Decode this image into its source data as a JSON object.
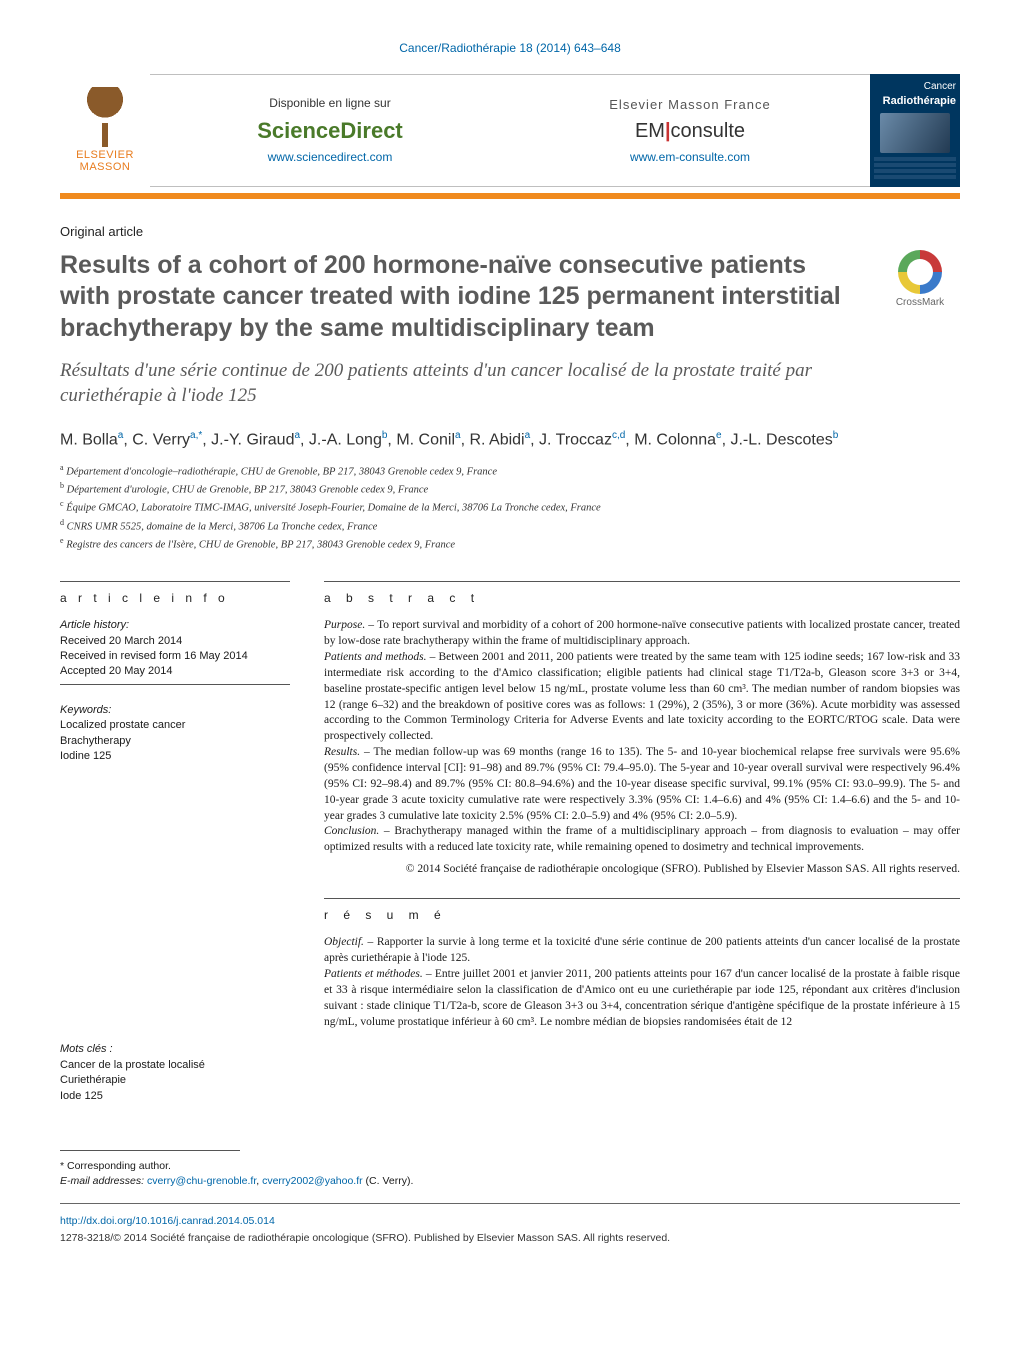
{
  "running_head": "Cancer/Radiothérapie 18 (2014) 643–648",
  "publisher": {
    "name_line1": "ELSEVIER",
    "name_line2": "MASSON"
  },
  "header": {
    "left": {
      "avail": "Disponible en ligne sur",
      "brand": "ScienceDirect",
      "url": "www.sciencedirect.com"
    },
    "right": {
      "avail": "Elsevier Masson France",
      "brand_a": "EM",
      "brand_b": "consulte",
      "url": "www.em-consulte.com"
    }
  },
  "cover": {
    "line1": "Cancer",
    "line2": "Radiothérapie"
  },
  "article_type": "Original article",
  "title_en": "Results of a cohort of 200 hormone-naïve consecutive patients with prostate cancer treated with iodine 125 permanent interstitial brachytherapy by the same multidisciplinary team",
  "title_fr": "Résultats d'une série continue de 200 patients atteints d'un cancer localisé de la prostate traité par curiethérapie à l'iode 125",
  "crossmark": "CrossMark",
  "authors_html": "M. Bolla<sup>a</sup>, C. Verry<sup>a,*</sup>, J.-Y. Giraud<sup>a</sup>, J.-A. Long<sup>b</sup>, M. Conil<sup>a</sup>, R. Abidi<sup>a</sup>, J. Troccaz<sup>c,d</sup>, M. Colonna<sup>e</sup>, J.-L. Descotes<sup>b</sup>",
  "affiliations": [
    "Département d'oncologie–radiothérapie, CHU de Grenoble, BP 217, 38043 Grenoble cedex 9, France",
    "Département d'urologie, CHU de Grenoble, BP 217, 38043 Grenoble cedex 9, France",
    "Équipe GMCAO, Laboratoire TIMC-IMAG, université Joseph-Fourier, Domaine de la Merci, 38706 La Tronche cedex, France",
    "CNRS UMR 5525, domaine de la Merci, 38706 La Tronche cedex, France",
    "Registre des cancers de l'Isère, CHU de Grenoble, BP 217, 38043 Grenoble cedex 9, France"
  ],
  "aff_markers": [
    "a",
    "b",
    "c",
    "d",
    "e"
  ],
  "article_info": {
    "head": "a r t i c l e   i n f o",
    "history_label": "Article history:",
    "received": "Received 20 March 2014",
    "revised": "Received in revised form 16 May 2014",
    "accepted": "Accepted 20 May 2014",
    "keywords_label": "Keywords:",
    "keywords": [
      "Localized prostate cancer",
      "Brachytherapy",
      "Iodine 125"
    ],
    "motscles_label": "Mots clés :",
    "motscles": [
      "Cancer de la prostate localisé",
      "Curiethérapie",
      "Iode 125"
    ]
  },
  "abstract": {
    "head": "a b s t r a c t",
    "purpose_label": "Purpose. – ",
    "purpose": "To report survival and morbidity of a cohort of 200 hormone-naïve consecutive patients with localized prostate cancer, treated by low-dose rate brachytherapy within the frame of multidisciplinary approach.",
    "methods_label": "Patients and methods. – ",
    "methods": "Between 2001 and 2011, 200 patients were treated by the same team with 125 iodine seeds; 167 low-risk and 33 intermediate risk according to the d'Amico classification; eligible patients had clinical stage T1/T2a-b, Gleason score 3+3 or 3+4, baseline prostate-specific antigen level below 15 ng/mL, prostate volume less than 60 cm³. The median number of random biopsies was 12 (range 6–32) and the breakdown of positive cores was as follows: 1 (29%), 2 (35%), 3 or more (36%). Acute morbidity was assessed according to the Common Terminology Criteria for Adverse Events and late toxicity according to the EORTC/RTOG scale. Data were prospectively collected.",
    "results_label": "Results. – ",
    "results": "The median follow-up was 69 months (range 16 to 135). The 5- and 10-year biochemical relapse free survivals were 95.6% (95% confidence interval [CI]: 91–98) and 89.7% (95% CI: 79.4–95.0). The 5-year and 10-year overall survival were respectively 96.4% (95% CI: 92–98.4) and 89.7% (95% CI: 80.8–94.6%) and the 10-year disease specific survival, 99.1% (95% CI: 93.0–99.9). The 5- and 10-year grade 3 acute toxicity cumulative rate were respectively 3.3% (95% CI: 1.4–6.6) and 4% (95% CI: 1.4–6.6) and the 5- and 10-year grades 3 cumulative late toxicity 2.5% (95% CI: 2.0–5.9) and 4% (95% CI: 2.0–5.9).",
    "conclusion_label": "Conclusion. – ",
    "conclusion": "Brachytherapy managed within the frame of a multidisciplinary approach – from diagnosis to evaluation – may offer optimized results with a reduced late toxicity rate, while remaining opened to dosimetry and technical improvements.",
    "copyright": "© 2014 Société française de radiothérapie oncologique (SFRO). Published by Elsevier Masson SAS. All rights reserved."
  },
  "resume": {
    "head": "r é s u m é",
    "objectif_label": "Objectif. – ",
    "objectif": "Rapporter la survie à long terme et la toxicité d'une série continue de 200 patients atteints d'un cancer localisé de la prostate après curiethérapie à l'iode 125.",
    "methods_label": "Patients et méthodes. – ",
    "methods": "Entre juillet 2001 et janvier 2011, 200 patients atteints pour 167 d'un cancer localisé de la prostate à faible risque et 33 à risque intermédiaire selon la classification de d'Amico ont eu une curiethérapie par iode 125, répondant aux critères d'inclusion suivant : stade clinique T1/T2a-b, score de Gleason 3+3 ou 3+4, concentration sérique d'antigène spécifique de la prostate inférieure à 15 ng/mL, volume prostatique inférieur à 60 cm³. Le nombre médian de biopsies randomisées était de 12"
  },
  "footnotes": {
    "corr": "* Corresponding author.",
    "email_label": "E-mail addresses:",
    "email1": "cverry@chu-grenoble.fr",
    "email2": "cverry2002@yahoo.fr",
    "email_suffix": " (C. Verry)."
  },
  "doi": "http://dx.doi.org/10.1016/j.canrad.2014.05.014",
  "issn": "1278-3218/© 2014 Société française de radiothérapie oncologique (SFRO). Published by Elsevier Masson SAS. All rights reserved."
}
